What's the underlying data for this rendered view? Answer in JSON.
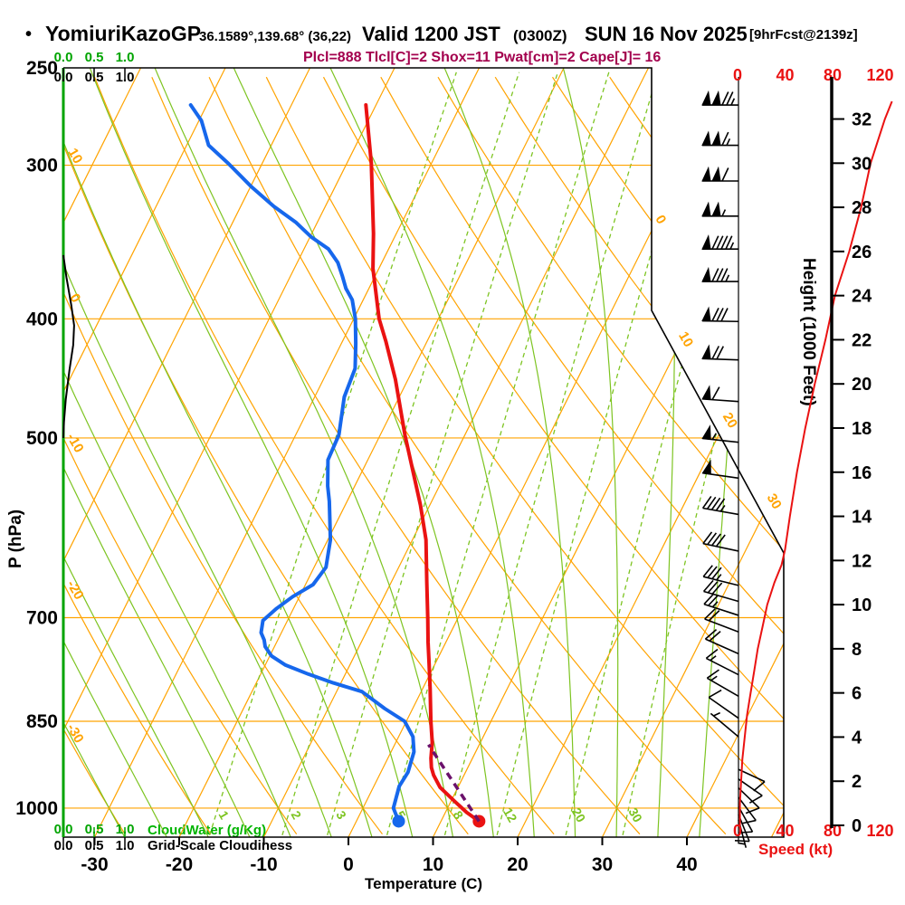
{
  "title": {
    "bullet": "•",
    "station": "YomiuriKazoGP",
    "coords": "36.1589°,139.68° (36,22)",
    "valid": "Valid 1200 JST",
    "valid_z": "(0300Z)",
    "valid_date": "SUN 16 Nov 2025",
    "fcst": "[9hrFcst@2139z]"
  },
  "stats_line": "Plcl=888 Tlcl[C]=2 Shox=11 Pwat[cm]=2 Cape[J]= 16",
  "axes": {
    "pressure": {
      "label": "P (hPa)",
      "ticks": [
        250,
        300,
        400,
        500,
        700,
        850,
        1000
      ]
    },
    "temperature": {
      "label": "Temperature (C)",
      "ticks": [
        -30,
        -20,
        -10,
        0,
        10,
        20,
        30,
        40
      ]
    },
    "height": {
      "label": "Height (1000 Feet)",
      "ticks": [
        0,
        2,
        4,
        6,
        8,
        10,
        12,
        14,
        16,
        18,
        20,
        22,
        24,
        26,
        28,
        30,
        32
      ]
    },
    "speed": {
      "label": "Speed (kt)",
      "ticks": [
        0,
        40,
        80,
        120
      ]
    },
    "cloudwater": {
      "label": "CloudWater (g/Kg)",
      "ticks": [
        "0.0",
        "0.5",
        "1.0"
      ]
    },
    "cloudiness": {
      "label": "Grid-Scale Cloudiness",
      "ticks": [
        "0.0",
        "0.5",
        "1.0"
      ]
    }
  },
  "grid": {
    "isotherms": {
      "min": -120,
      "max": 50,
      "step": 10
    },
    "dry_adiabats": {
      "min": -40,
      "max": 150,
      "step": 10
    },
    "moist_adiabats": {
      "min": -30,
      "max": 40,
      "step": 5
    },
    "mixing_ratios": [
      1,
      2,
      3,
      5,
      8,
      12,
      20,
      30
    ],
    "pressure_lines": [
      300,
      400,
      500,
      700,
      850,
      1000
    ],
    "isotherm_edge_labels": [
      0,
      10,
      20,
      30
    ],
    "dry_adiabat_edge_labels": [
      10,
      0,
      -10,
      -20,
      -30
    ]
  },
  "colors": {
    "orange": "#ffa300",
    "grid_green": "#7dc421",
    "axis_green": "#00a400",
    "blue": "#1667ec",
    "red": "#ea1212",
    "purple": "#6b116b",
    "stats": "#a3004d",
    "black": "#000000"
  },
  "chart_data": {
    "type": "skewt-sounding",
    "pressure_range_hpa": [
      250,
      1050
    ],
    "temperature_axis_c": [
      -35,
      45
    ],
    "temperature_profile_p_c": [
      [
        1025,
        14.5
      ],
      [
        1008,
        12.5
      ],
      [
        987,
        10.4
      ],
      [
        962,
        7.9
      ],
      [
        940,
        6.4
      ],
      [
        927,
        5.7
      ],
      [
        911,
        5.1
      ],
      [
        884,
        4.3
      ],
      [
        850,
        2.9
      ],
      [
        800,
        0.9
      ],
      [
        759,
        -0.9
      ],
      [
        733,
        -2.1
      ],
      [
        702,
        -3.5
      ],
      [
        655,
        -5.8
      ],
      [
        605,
        -8.4
      ],
      [
        567,
        -11.1
      ],
      [
        497,
        -17.1
      ],
      [
        448,
        -21.5
      ],
      [
        417,
        -24.9
      ],
      [
        400,
        -27.0
      ],
      [
        364,
        -30.7
      ],
      [
        341,
        -32.7
      ],
      [
        299,
        -37.1
      ],
      [
        268,
        -41.2
      ]
    ],
    "dewpoint_profile_p_c": [
      [
        1025,
        5.0
      ],
      [
        1000,
        3.6
      ],
      [
        960,
        3.0
      ],
      [
        935,
        3.2
      ],
      [
        900,
        2.7
      ],
      [
        875,
        1.7
      ],
      [
        850,
        -0.2
      ],
      [
        830,
        -3.3
      ],
      [
        804,
        -7.0
      ],
      [
        791,
        -10.9
      ],
      [
        778,
        -14.4
      ],
      [
        765,
        -17.6
      ],
      [
        752,
        -19.8
      ],
      [
        739,
        -21.1
      ],
      [
        730,
        -21.6
      ],
      [
        720,
        -22.4
      ],
      [
        704,
        -22.9
      ],
      [
        688,
        -22.0
      ],
      [
        673,
        -20.8
      ],
      [
        658,
        -19.1
      ],
      [
        637,
        -18.6
      ],
      [
        605,
        -19.7
      ],
      [
        563,
        -22.1
      ],
      [
        547,
        -23.2
      ],
      [
        521,
        -24.7
      ],
      [
        497,
        -24.9
      ],
      [
        463,
        -26.5
      ],
      [
        439,
        -26.9
      ],
      [
        419,
        -28.3
      ],
      [
        400,
        -29.8
      ],
      [
        386,
        -31.3
      ],
      [
        378,
        -32.7
      ],
      [
        369,
        -33.9
      ],
      [
        360,
        -35.2
      ],
      [
        351,
        -37.1
      ],
      [
        343,
        -39.9
      ],
      [
        334,
        -42.5
      ],
      [
        324,
        -46.1
      ],
      [
        312,
        -50.0
      ],
      [
        299,
        -54.0
      ],
      [
        289,
        -57.4
      ],
      [
        276,
        -59.7
      ],
      [
        268,
        -61.9
      ]
    ],
    "parcel_path_p_c": [
      [
        1025,
        14.5
      ],
      [
        888,
        4.0
      ]
    ],
    "cloudiness_profile_p_frac": [
      [
        355,
        0
      ],
      [
        370,
        0.05
      ],
      [
        390,
        0.13
      ],
      [
        405,
        0.175
      ],
      [
        420,
        0.16
      ],
      [
        440,
        0.1
      ],
      [
        465,
        0.04
      ],
      [
        485,
        0.01
      ],
      [
        500,
        0
      ]
    ],
    "cloudwater_profile_p_gkg": [
      [
        250,
        0
      ],
      [
        1050,
        0
      ]
    ],
    "wind_profile_p_dir_kt": [
      [
        268,
        270,
        125
      ],
      [
        289,
        270,
        115
      ],
      [
        309,
        270,
        110
      ],
      [
        330,
        270,
        105
      ],
      [
        351,
        270,
        95
      ],
      [
        373,
        270,
        85
      ],
      [
        402,
        271,
        78
      ],
      [
        432,
        272,
        68
      ],
      [
        467,
        274,
        60
      ],
      [
        504,
        276,
        53
      ],
      [
        539,
        278,
        50
      ],
      [
        577,
        280,
        45
      ],
      [
        618,
        282,
        40
      ],
      [
        659,
        284,
        33
      ],
      [
        679,
        286,
        28
      ],
      [
        697,
        288,
        25
      ],
      [
        719,
        291,
        22
      ],
      [
        749,
        294,
        18
      ],
      [
        779,
        297,
        15
      ],
      [
        811,
        300,
        13
      ],
      [
        845,
        305,
        10
      ],
      [
        875,
        310,
        7
      ],
      [
        930,
        115,
        8
      ],
      [
        947,
        125,
        8
      ],
      [
        963,
        134,
        8
      ],
      [
        980,
        143,
        10
      ],
      [
        997,
        151,
        10
      ],
      [
        1012,
        158,
        8
      ],
      [
        1022,
        165,
        5
      ]
    ],
    "speed_profile_kft_kt": [
      [
        0,
        2
      ],
      [
        1,
        2
      ],
      [
        2,
        3
      ],
      [
        3,
        4
      ],
      [
        4,
        6
      ],
      [
        5,
        8
      ],
      [
        6,
        11
      ],
      [
        7,
        14
      ],
      [
        8,
        17
      ],
      [
        9,
        21
      ],
      [
        10,
        25
      ],
      [
        11,
        31
      ],
      [
        11.8,
        37
      ],
      [
        12.5,
        40
      ],
      [
        14,
        44
      ],
      [
        16,
        50
      ],
      [
        18,
        57
      ],
      [
        20,
        65
      ],
      [
        22,
        74
      ],
      [
        24,
        82
      ],
      [
        26,
        94
      ],
      [
        28,
        104
      ],
      [
        30,
        112
      ],
      [
        32,
        124
      ],
      [
        32.8,
        130
      ]
    ]
  }
}
